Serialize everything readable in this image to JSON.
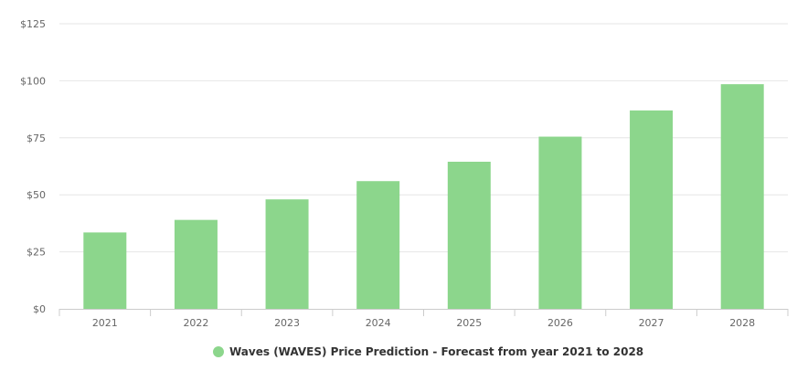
{
  "chart_data": {
    "type": "bar",
    "categories": [
      "2021",
      "2022",
      "2023",
      "2024",
      "2025",
      "2026",
      "2027",
      "2028"
    ],
    "series": [
      {
        "name": "Waves (WAVES) Price Prediction - Forecast from year 2021 to 2028",
        "values": [
          33.5,
          39,
          48,
          56,
          64.5,
          75.5,
          87,
          98.5
        ],
        "color": "#8cd68c"
      }
    ],
    "ylim": [
      0,
      125
    ],
    "yticks": [
      "$0",
      "$25",
      "$50",
      "$75",
      "$100",
      "$125"
    ],
    "grid": true,
    "legend_position": "bottom-center",
    "gridline_color": "#e6e6e6",
    "axis_color": "#cccccc"
  }
}
